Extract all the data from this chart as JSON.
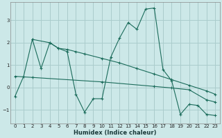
{
  "xlabel": "Humidex (Indice chaleur)",
  "background_color": "#cce8e8",
  "grid_color": "#aacccc",
  "line_color": "#1a6b5a",
  "xlim": [
    -0.5,
    23.5
  ],
  "ylim": [
    -1.6,
    3.8
  ],
  "yticks": [
    -1,
    0,
    1,
    2,
    3
  ],
  "xticks": [
    0,
    1,
    2,
    3,
    4,
    5,
    6,
    7,
    8,
    9,
    10,
    11,
    12,
    13,
    14,
    15,
    16,
    17,
    18,
    19,
    20,
    21,
    22,
    23
  ],
  "series1_x": [
    0,
    1,
    2,
    3,
    4,
    5,
    6,
    7,
    8,
    9,
    10,
    11,
    12,
    13,
    14,
    15,
    16,
    17,
    18,
    19,
    20,
    21,
    22,
    23
  ],
  "series1_y": [
    -0.4,
    0.5,
    2.15,
    0.85,
    2.0,
    1.75,
    1.6,
    -0.3,
    -1.1,
    -0.5,
    -0.5,
    1.35,
    2.2,
    2.9,
    2.6,
    3.5,
    3.55,
    0.8,
    0.3,
    -1.2,
    -0.75,
    -0.8,
    -1.2,
    -1.25
  ],
  "series2_x": [
    2,
    4,
    5,
    6,
    7,
    8,
    10,
    12,
    14,
    16,
    18,
    20,
    22,
    23
  ],
  "series2_y": [
    2.15,
    2.0,
    1.75,
    1.7,
    1.6,
    1.5,
    1.3,
    1.1,
    0.85,
    0.6,
    0.35,
    0.1,
    -0.15,
    -0.3
  ],
  "series3_x": [
    0,
    2,
    10,
    16,
    18,
    20,
    22,
    23
  ],
  "series3_y": [
    0.5,
    0.45,
    0.25,
    0.05,
    -0.02,
    -0.1,
    -0.55,
    -0.65
  ]
}
